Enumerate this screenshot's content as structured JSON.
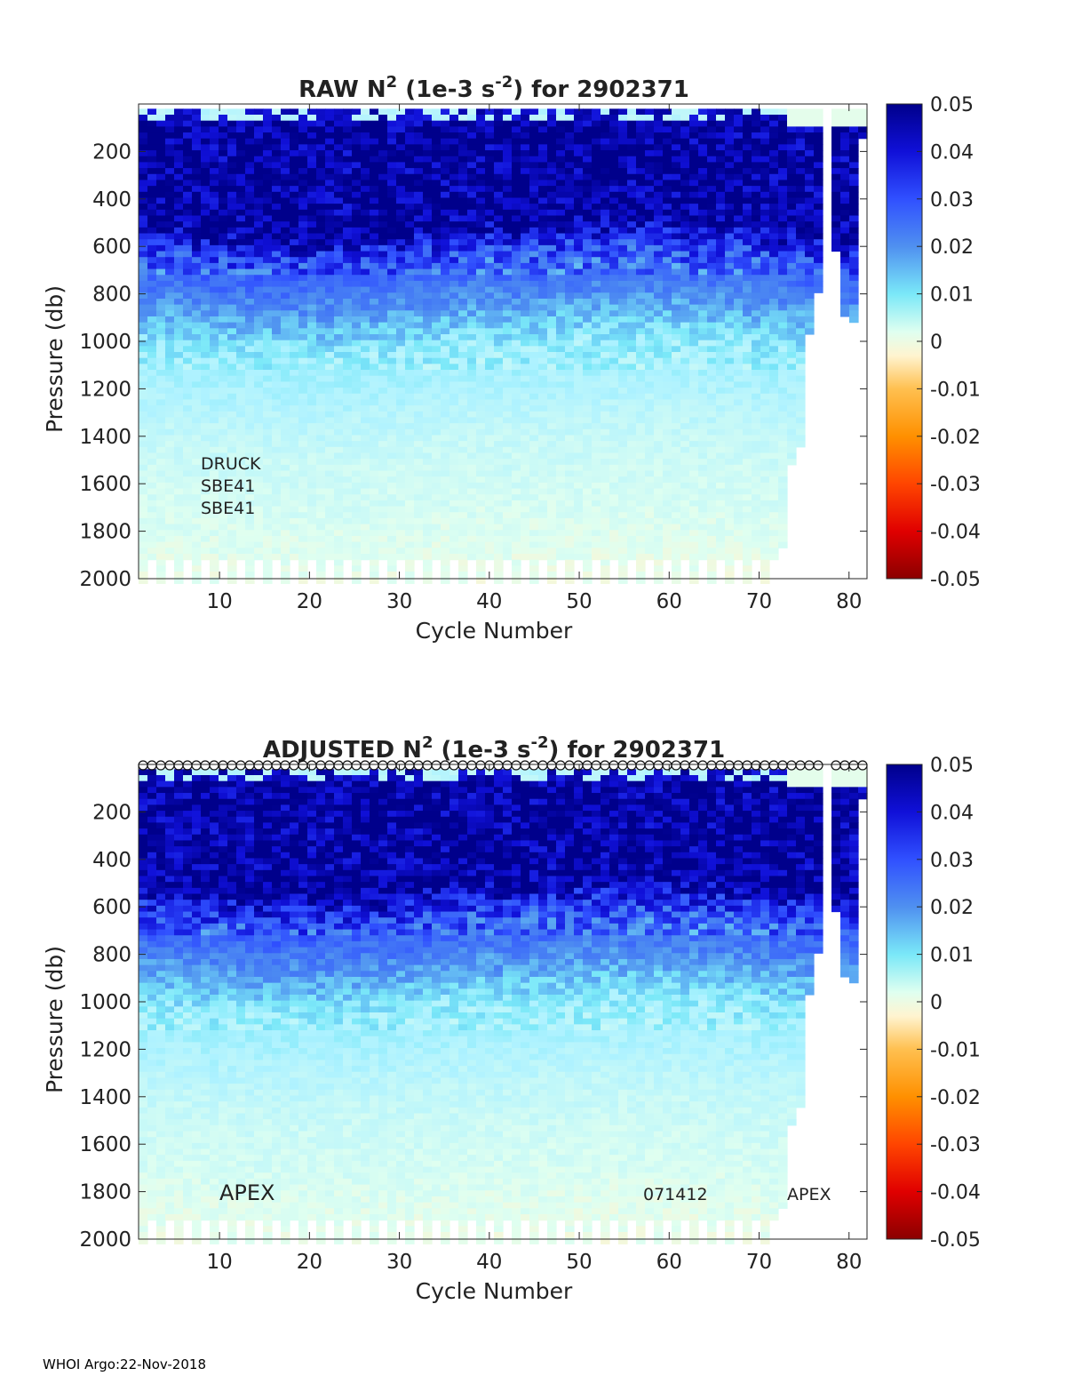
{
  "footer": "WHOI Argo:22-Nov-2018",
  "chart_data": [
    {
      "type": "heatmap",
      "id": "raw",
      "title": {
        "prefix": "RAW N",
        "sup1": "2",
        "mid": " (1e-3 s",
        "sup2": "-2",
        "suffix": ") for 2902371"
      },
      "xlabel": "Cycle Number",
      "ylabel": "Pressure (db)",
      "xlim": [
        1,
        82
      ],
      "ylim": [
        0,
        2000
      ],
      "y_reversed": true,
      "xticks": [
        10,
        20,
        30,
        40,
        50,
        60,
        70,
        80
      ],
      "yticks": [
        200,
        400,
        600,
        800,
        1000,
        1200,
        1400,
        1600,
        1800,
        2000
      ],
      "annotations": [
        "DRUCK",
        "SBE41",
        "SBE41"
      ],
      "flag_markers": false
    },
    {
      "type": "heatmap",
      "id": "adjusted",
      "title": {
        "prefix": "ADJUSTED N",
        "sup1": "2",
        "mid": " (1e-3 s",
        "sup2": "-2",
        "suffix": ") for 2902371"
      },
      "xlabel": "Cycle Number",
      "ylabel": "Pressure (db)",
      "xlim": [
        1,
        82
      ],
      "ylim": [
        0,
        2000
      ],
      "y_reversed": true,
      "xticks": [
        10,
        20,
        30,
        40,
        50,
        60,
        70,
        80
      ],
      "yticks": [
        200,
        400,
        600,
        800,
        1000,
        1200,
        1400,
        1600,
        1800,
        2000
      ],
      "annotations": [
        "APEX",
        "071412",
        "APEX"
      ],
      "flag_markers": true
    }
  ],
  "colorbar": {
    "range": [
      -0.05,
      0.05
    ],
    "tick_labels": [
      "0.05",
      "0.04",
      "0.03",
      "0.02",
      "0.01",
      "0",
      "-0.01",
      "-0.02",
      "-0.03",
      "-0.04",
      "-0.05"
    ]
  },
  "colors": {
    "deep": "#00008b",
    "mid": "#4f7ff0",
    "light": "#aef2ff",
    "near_zero": "#dffff0",
    "warm": "#ffa500",
    "hot": "#8b0000"
  }
}
